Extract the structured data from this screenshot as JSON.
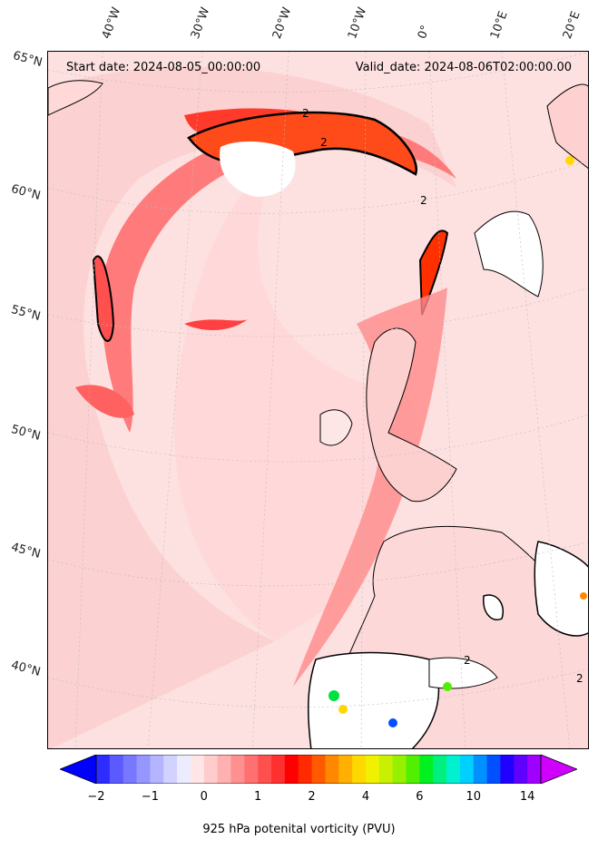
{
  "chart_data": {
    "type": "heatmap",
    "title_left": "Start date: 2024-08-05_00:00:00",
    "title_right": "Valid_date: 2024-08-06T02:00:00.00",
    "longitude_labels": [
      "40°W",
      "30°W",
      "20°W",
      "10°W",
      "0°",
      "10°E",
      "20°E"
    ],
    "latitude_labels": [
      "65°N",
      "60°N",
      "55°N",
      "50°N",
      "45°N",
      "40°N"
    ],
    "contour_label": "2",
    "colorbar": {
      "label": "925 hPa potenital vorticity (PVU)",
      "ticks": [
        "−2",
        "−1",
        "0",
        "1",
        "2",
        "4",
        "6",
        "10",
        "14"
      ],
      "extend": "both",
      "colors": [
        "#0000ff",
        "#2d2dff",
        "#5a5aff",
        "#7878ff",
        "#9696ff",
        "#b4b4ff",
        "#d2d2ff",
        "#ececff",
        "#ffe6e6",
        "#ffcccc",
        "#ffb0b0",
        "#ff9090",
        "#ff7070",
        "#ff5050",
        "#ff3030",
        "#ff0000",
        "#ff2a00",
        "#ff5a00",
        "#ff8800",
        "#ffb000",
        "#ffd800",
        "#f0f000",
        "#c8f000",
        "#96f000",
        "#50f000",
        "#00f020",
        "#00f080",
        "#00f0d0",
        "#00d0ff",
        "#0090ff",
        "#0050ff",
        "#2000ff",
        "#6000ff",
        "#a000ff",
        "#d000ff"
      ]
    }
  }
}
